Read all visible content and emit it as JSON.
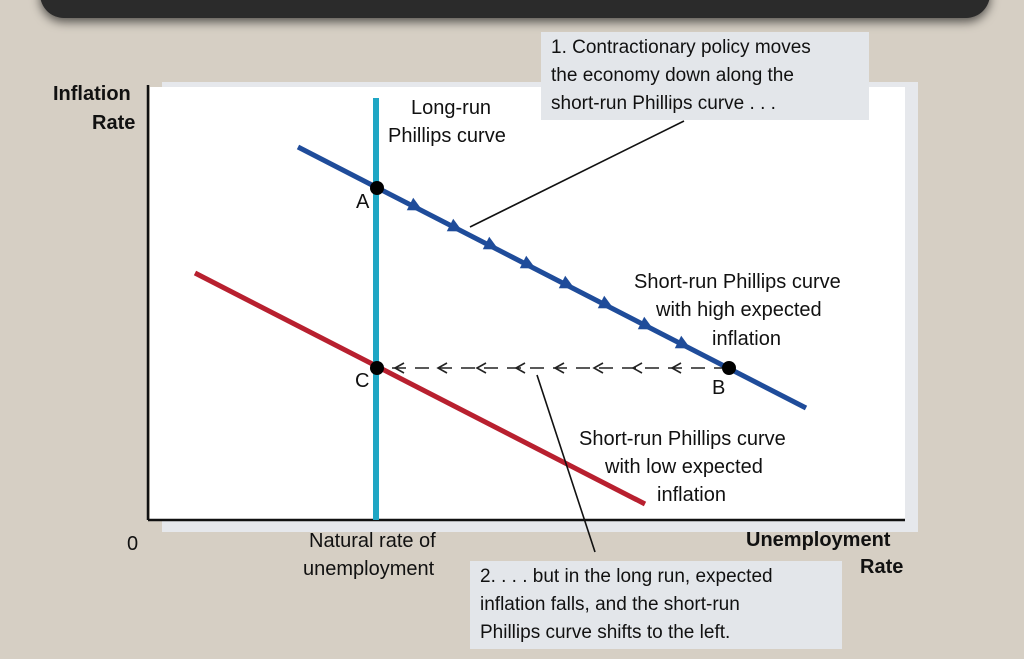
{
  "axes": {
    "y_label_line1": "Inflation",
    "y_label_line2": "Rate",
    "x_label_line1": "Unemployment",
    "x_label_line2": "Rate",
    "origin": "0",
    "natural_rate_line1": "Natural rate of",
    "natural_rate_line2": "unemployment"
  },
  "curves": {
    "lrpc_line1": "Long-run",
    "lrpc_line2": "Phillips curve",
    "srpc_high_line1": "Short-run Phillips curve",
    "srpc_high_line2": "with high expected",
    "srpc_high_line3": "inflation",
    "srpc_low_line1": "Short-run Phillips curve",
    "srpc_low_line2": "with low expected",
    "srpc_low_line3": "inflation"
  },
  "points": {
    "a": "A",
    "b": "B",
    "c": "C"
  },
  "notes": {
    "note1_line1": "1. Contractionary policy moves",
    "note1_line2": "the economy down along the",
    "note1_line3": "short-run Phillips curve . . .",
    "note2_line1": "2. . . . but in the long run, expected",
    "note2_line2": "inflation falls, and the short-run",
    "note2_line3": "Phillips curve shifts to the left."
  },
  "colors": {
    "lrpc": "#1fa6c4",
    "srpc_high": "#1f4c9a",
    "srpc_low": "#b8202f",
    "axis": "#111111"
  }
}
